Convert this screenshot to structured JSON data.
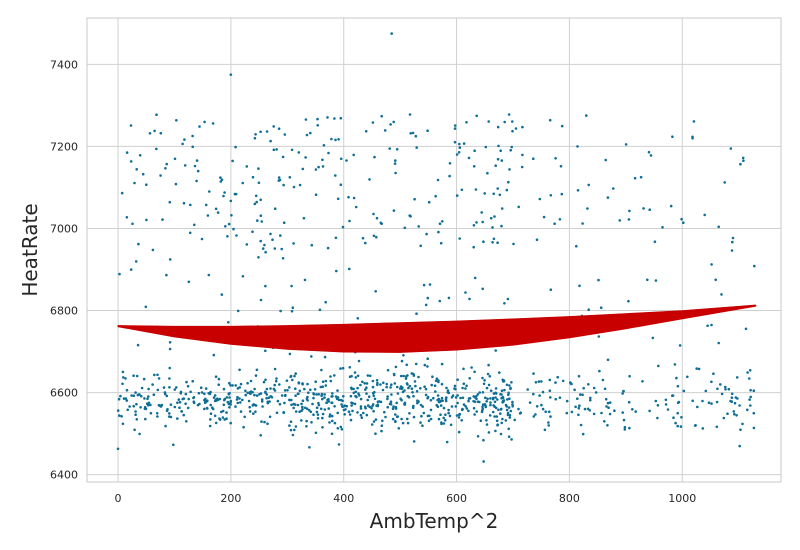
{
  "chart_data": {
    "type": "scatter",
    "title": "",
    "xlabel": "AmbTemp^2",
    "ylabel": "HeatRate",
    "xlim": [
      -55,
      1175
    ],
    "ylim": [
      6382,
      7513
    ],
    "xticks": [
      0,
      200,
      400,
      600,
      800,
      1000
    ],
    "yticks": [
      6400,
      6600,
      6800,
      7000,
      7200,
      7400
    ],
    "xtick_labels": [
      "0",
      "200",
      "400",
      "600",
      "800",
      "1000"
    ],
    "ytick_labels": [
      "6400",
      "6600",
      "6800",
      "7000",
      "7200",
      "7400"
    ],
    "grid": true,
    "legend": "none",
    "colors": {
      "points": "#0e6e95",
      "fit": "#c80000",
      "grid": "#d0d0d0",
      "spine": "#c8c8c8"
    },
    "point_distribution": {
      "count": 1300,
      "x_range": [
        0,
        1130
      ],
      "lower_cluster": {
        "share": 0.67,
        "center": 6580,
        "spread": 38
      },
      "upper_cluster": {
        "share": 0.24,
        "low": 6960,
        "high": 7280
      },
      "scattered_mid": {
        "share": 0.09,
        "low": 6620,
        "high": 6960
      },
      "outliers": [
        {
          "x": 485,
          "y": 7475
        },
        {
          "x": 200,
          "y": 7375
        },
        {
          "x": 648,
          "y": 6432
        },
        {
          "x": 0,
          "y": 6463
        }
      ]
    },
    "series": [
      {
        "name": "fit-upper",
        "x": [
          0,
          100,
          200,
          300,
          400,
          500,
          600,
          700,
          800,
          900,
          1000,
          1130
        ],
        "y": [
          6762,
          6760,
          6760,
          6762,
          6765,
          6769,
          6773,
          6778,
          6784,
          6791,
          6798,
          6812
        ]
      },
      {
        "name": "fit-lower",
        "x": [
          0,
          100,
          200,
          300,
          400,
          500,
          600,
          700,
          800,
          900,
          1000,
          1130
        ],
        "y": [
          6762,
          6737,
          6719,
          6707,
          6700,
          6699,
          6705,
          6717,
          6735,
          6757,
          6781,
          6812
        ]
      }
    ]
  }
}
